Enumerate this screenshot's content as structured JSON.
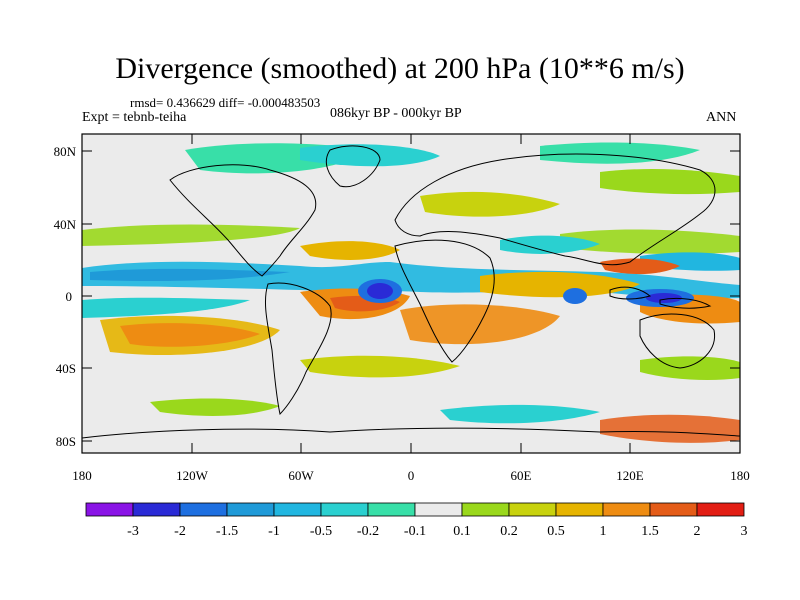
{
  "title": "Divergence (smoothed) at 200 hPa (10**6 m/s)",
  "stats": "rmsd= 0.436629 diff= -0.000483503",
  "expt": "Expt = tebnb-teiha",
  "period": "086kyr BP - 000kyr BP",
  "season": "ANN",
  "lat_labels": [
    "80N",
    "40N",
    "0",
    "40S",
    "80S"
  ],
  "lon_labels": [
    "180",
    "120W",
    "60W",
    "0",
    "60E",
    "120E",
    "180"
  ],
  "colorbar": {
    "labels": [
      "-3",
      "-2",
      "-1.5",
      "-1",
      "-0.5",
      "-0.2",
      "-0.1",
      "0.1",
      "0.2",
      "0.5",
      "1",
      "1.5",
      "2",
      "3"
    ],
    "colors": [
      "#8a14e6",
      "#2a2ad6",
      "#1e6fe0",
      "#1f9ad8",
      "#21b6e0",
      "#2ad0d0",
      "#38dfa8",
      "#ebebeb",
      "#9ad81c",
      "#c8d20e",
      "#e6b400",
      "#ee8c12",
      "#e45c18",
      "#e21e14"
    ]
  }
}
